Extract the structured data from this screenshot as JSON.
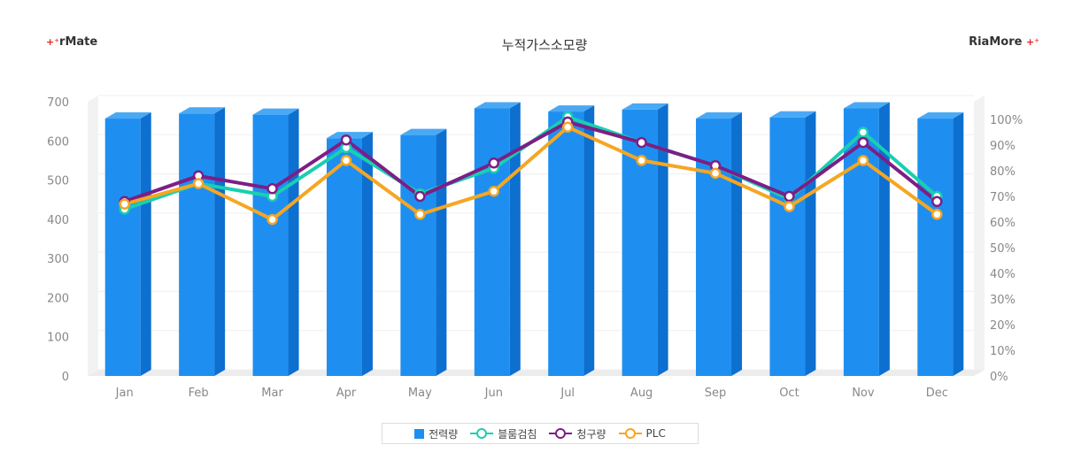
{
  "brand_left": {
    "plus": "+⁺",
    "text": "rMate"
  },
  "brand_right": {
    "text": "RiaMore",
    "plus": "+⁺"
  },
  "chart_data": {
    "type": "bar",
    "title": "누적가스소모량",
    "categories": [
      "Jan",
      "Feb",
      "Mar",
      "Apr",
      "May",
      "Jun",
      "Jul",
      "Aug",
      "Sep",
      "Oct",
      "Nov",
      "Dec"
    ],
    "y_left": {
      "min": 0,
      "max": 700,
      "step": 100,
      "ticks": [
        "0",
        "100",
        "200",
        "300",
        "400",
        "500",
        "600",
        "700"
      ]
    },
    "y_right": {
      "min": 0,
      "max": 100,
      "step": 10,
      "unit": "%",
      "ticks": [
        "0%",
        "10%",
        "20%",
        "30%",
        "40%",
        "50%",
        "60%",
        "70%",
        "80%",
        "90%",
        "100%"
      ]
    },
    "series": [
      {
        "name": "전력량",
        "type": "bar",
        "axis": "left",
        "color": "#1e8ff0",
        "values": [
          657,
          670,
          667,
          607,
          615,
          683,
          675,
          680,
          657,
          660,
          683,
          657
        ]
      },
      {
        "name": "블룸검침",
        "type": "line",
        "axis": "right",
        "color": "#19cfb0",
        "values": [
          65,
          75,
          70,
          89,
          71,
          81,
          101,
          91,
          82,
          69,
          95,
          70
        ]
      },
      {
        "name": "청구량",
        "type": "line",
        "axis": "right",
        "color": "#7d1e86",
        "values": [
          68,
          78,
          73,
          92,
          70,
          83,
          99,
          91,
          82,
          70,
          91,
          68
        ]
      },
      {
        "name": "PLC",
        "type": "line",
        "axis": "right",
        "color": "#f5a623",
        "values": [
          67,
          75,
          61,
          84,
          63,
          72,
          97,
          84,
          79,
          66,
          84,
          63
        ]
      }
    ],
    "grid": true,
    "legend": "bottom-center"
  }
}
